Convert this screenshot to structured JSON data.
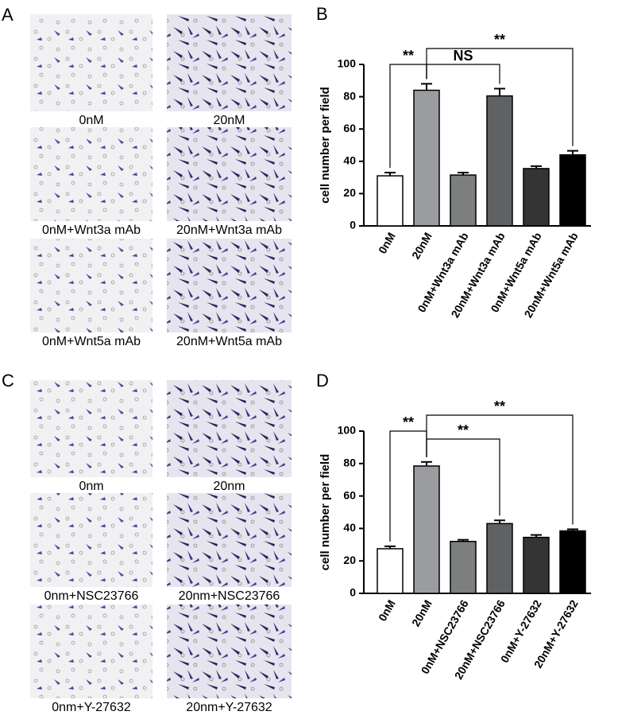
{
  "panels": [
    {
      "label": "A",
      "captions": [
        "0nM",
        "20nM",
        "0nM+Wnt3a mAb",
        "20nM+Wnt3a mAb",
        "0nM+Wnt5a mAb",
        "20nM+Wnt5a mAb"
      ]
    },
    {
      "label": "C",
      "captions": [
        "0nm",
        "20nm",
        "0nm+NSC23766",
        "20nm+NSC23766",
        "0nm+Y-27632",
        "20nm+Y-27632"
      ]
    }
  ],
  "chart_data": [
    {
      "type": "bar",
      "label": "B",
      "y_label": "cell number per field",
      "categories": [
        "0nM",
        "20nM",
        "0nM+Wnt3a mAb",
        "20nM+Wnt3a mAb",
        "0nM+Wnt5a mAb",
        "20nM+Wnt5a mAb"
      ],
      "values": [
        31,
        84,
        31.5,
        80.5,
        35.5,
        44
      ],
      "errors": [
        2,
        4,
        1.5,
        4.5,
        1.5,
        2.5
      ],
      "colors": [
        "#ffffff",
        "#9a9c9f",
        "#7c7f7e",
        "#5f6163",
        "#343434",
        "#000000"
      ],
      "ylim": [
        0,
        100
      ],
      "yticks": [
        0,
        20,
        40,
        60,
        80,
        100
      ],
      "annotations": [
        {
          "text": "**",
          "from": 0,
          "to": 1
        },
        {
          "text": "NS",
          "from": 1,
          "to": 3
        },
        {
          "text": "**",
          "from": 1,
          "to": 5
        }
      ]
    },
    {
      "type": "bar",
      "label": "D",
      "y_label": "cell number per field",
      "categories": [
        "0nM",
        "20nM",
        "0nM+NSC23766",
        "20nM+NSC23766",
        "0nM+Y-27632",
        "20nM+Y-27632"
      ],
      "values": [
        27.5,
        78.5,
        32,
        43,
        34.5,
        38.5
      ],
      "errors": [
        1.5,
        2.5,
        1,
        2,
        1.5,
        1
      ],
      "colors": [
        "#ffffff",
        "#9a9c9f",
        "#7c7f7e",
        "#5f6163",
        "#343434",
        "#000000"
      ],
      "ylim": [
        0,
        100
      ],
      "yticks": [
        0,
        20,
        40,
        60,
        80,
        100
      ],
      "annotations": [
        {
          "text": "**",
          "from": 0,
          "to": 1
        },
        {
          "text": "**",
          "from": 1,
          "to": 3
        },
        {
          "text": "**",
          "from": 1,
          "to": 5
        }
      ]
    }
  ]
}
